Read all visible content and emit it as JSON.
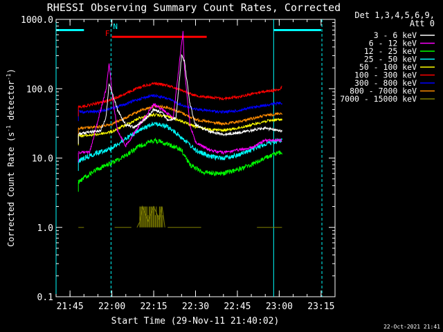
{
  "chart_data": {
    "type": "line",
    "title": "RHESSI Observing Summary Count Rates, Corrected",
    "xlabel": "Start Time (29-Nov-11 21:40:02)",
    "ylabel_main": "Corrected Count Rate (s",
    "ylabel_sup": "-1",
    "ylabel_mid": " detector",
    "ylabel_end": ")",
    "y_scale": "log",
    "ylim": [
      0.1,
      1000
    ],
    "xlim": [
      "21:40",
      "23:20"
    ],
    "y_ticks": [
      {
        "value": 0.1,
        "label": "0.1"
      },
      {
        "value": 1,
        "label": "1.0"
      },
      {
        "value": 10,
        "label": "10.0"
      },
      {
        "value": 100,
        "label": "100.0"
      },
      {
        "value": 1000,
        "label": "1000.0"
      }
    ],
    "x_ticks": [
      {
        "value": "21:45",
        "label": "21:45"
      },
      {
        "value": "22:00",
        "label": "22:00"
      },
      {
        "value": "22:15",
        "label": "22:15"
      },
      {
        "value": "22:30",
        "label": "22:30"
      },
      {
        "value": "22:45",
        "label": "22:45"
      },
      {
        "value": "23:00",
        "label": "23:00"
      },
      {
        "value": "23:15",
        "label": "23:15"
      }
    ],
    "legend_placement": "right",
    "legend_header": [
      "Det 1,3,4,5,6,9,",
      "Att 0"
    ],
    "series": [
      {
        "name": "3 - 6 keV",
        "color": "#000000",
        "display_color": "#ffffff",
        "points": [
          [
            "21:48",
            22
          ],
          [
            "21:50",
            23
          ],
          [
            "21:56",
            25
          ],
          [
            "21:58",
            40
          ],
          [
            "21:59",
            120
          ],
          [
            "22:00",
            90
          ],
          [
            "22:02",
            50
          ],
          [
            "22:05",
            30
          ],
          [
            "22:08",
            28
          ],
          [
            "22:12",
            36
          ],
          [
            "22:15",
            50
          ],
          [
            "22:18",
            45
          ],
          [
            "22:20",
            35
          ],
          [
            "22:23",
            38
          ],
          [
            "22:25",
            300
          ],
          [
            "22:26",
            250
          ],
          [
            "22:28",
            60
          ],
          [
            "22:30",
            30
          ],
          [
            "22:35",
            24
          ],
          [
            "22:40",
            22
          ],
          [
            "22:45",
            23
          ],
          [
            "22:50",
            25
          ],
          [
            "22:55",
            27
          ],
          [
            "23:00",
            25
          ],
          [
            "23:01",
            24
          ]
        ]
      },
      {
        "name": "6 - 12 keV",
        "color": "#ff00ff",
        "points": [
          [
            "21:48",
            12
          ],
          [
            "21:52",
            12
          ],
          [
            "21:58",
            100
          ],
          [
            "21:59",
            240
          ],
          [
            "22:00",
            90
          ],
          [
            "22:02",
            25
          ],
          [
            "22:05",
            15
          ],
          [
            "22:10",
            30
          ],
          [
            "22:15",
            60
          ],
          [
            "22:18",
            50
          ],
          [
            "22:22",
            38
          ],
          [
            "22:25",
            450
          ],
          [
            "22:25.5",
            650
          ],
          [
            "22:26",
            200
          ],
          [
            "22:28",
            30
          ],
          [
            "22:30",
            17
          ],
          [
            "22:35",
            13
          ],
          [
            "22:40",
            12
          ],
          [
            "22:50",
            14
          ],
          [
            "22:55",
            18
          ],
          [
            "23:00",
            18
          ],
          [
            "23:01",
            18
          ]
        ]
      },
      {
        "name": "12 - 25 keV",
        "color": "#00ff00",
        "points": [
          [
            "21:48",
            4.5
          ],
          [
            "21:50",
            5.2
          ],
          [
            "21:55",
            7
          ],
          [
            "22:00",
            8.5
          ],
          [
            "22:05",
            11
          ],
          [
            "22:10",
            15
          ],
          [
            "22:15",
            18
          ],
          [
            "22:20",
            16
          ],
          [
            "22:25",
            13
          ],
          [
            "22:28",
            8
          ],
          [
            "22:33",
            6.2
          ],
          [
            "22:40",
            6
          ],
          [
            "22:45",
            6.8
          ],
          [
            "22:50",
            8
          ],
          [
            "22:55",
            10
          ],
          [
            "23:00",
            12
          ],
          [
            "23:01",
            12
          ]
        ]
      },
      {
        "name": "25 - 50 keV",
        "color": "#00ffff",
        "points": [
          [
            "21:48",
            9
          ],
          [
            "21:50",
            10
          ],
          [
            "21:55",
            12
          ],
          [
            "22:00",
            14
          ],
          [
            "22:05",
            19
          ],
          [
            "22:10",
            25
          ],
          [
            "22:15",
            32
          ],
          [
            "22:20",
            28
          ],
          [
            "22:25",
            20
          ],
          [
            "22:30",
            13
          ],
          [
            "22:35",
            10.5
          ],
          [
            "22:40",
            10
          ],
          [
            "22:45",
            11
          ],
          [
            "22:50",
            13
          ],
          [
            "22:55",
            16
          ],
          [
            "23:00",
            18
          ],
          [
            "23:01",
            18
          ]
        ]
      },
      {
        "name": "50 - 100 keV",
        "color": "#ffff00",
        "points": [
          [
            "21:48",
            21
          ],
          [
            "21:50",
            21
          ],
          [
            "21:55",
            22
          ],
          [
            "22:00",
            24
          ],
          [
            "22:05",
            30
          ],
          [
            "22:10",
            38
          ],
          [
            "22:15",
            42
          ],
          [
            "22:20",
            40
          ],
          [
            "22:25",
            34
          ],
          [
            "22:30",
            28
          ],
          [
            "22:35",
            26
          ],
          [
            "22:40",
            25
          ],
          [
            "22:45",
            27
          ],
          [
            "22:50",
            30
          ],
          [
            "22:55",
            34
          ],
          [
            "23:00",
            36
          ],
          [
            "23:01",
            36
          ]
        ]
      },
      {
        "name": "100 - 300 keV",
        "color": "#ff0000",
        "points": [
          [
            "21:48",
            55
          ],
          [
            "21:50",
            56
          ],
          [
            "21:55",
            62
          ],
          [
            "22:00",
            70
          ],
          [
            "22:05",
            85
          ],
          [
            "22:10",
            105
          ],
          [
            "22:15",
            120
          ],
          [
            "22:20",
            112
          ],
          [
            "22:25",
            95
          ],
          [
            "22:30",
            80
          ],
          [
            "22:35",
            75
          ],
          [
            "22:40",
            72
          ],
          [
            "22:45",
            76
          ],
          [
            "22:50",
            84
          ],
          [
            "22:55",
            92
          ],
          [
            "23:00",
            96
          ],
          [
            "23:01",
            105
          ]
        ]
      },
      {
        "name": "300 - 800 keV",
        "color": "#0000ff",
        "points": [
          [
            "21:48",
            47
          ],
          [
            "21:50",
            46
          ],
          [
            "21:55",
            47
          ],
          [
            "22:00",
            52
          ],
          [
            "22:05",
            60
          ],
          [
            "22:10",
            72
          ],
          [
            "22:15",
            80
          ],
          [
            "22:20",
            72
          ],
          [
            "22:25",
            58
          ],
          [
            "22:30",
            51
          ],
          [
            "22:35",
            48
          ],
          [
            "22:40",
            46
          ],
          [
            "22:45",
            48
          ],
          [
            "22:50",
            53
          ],
          [
            "22:55",
            58
          ],
          [
            "23:00",
            62
          ],
          [
            "23:01",
            62
          ]
        ]
      },
      {
        "name": "800 - 7000 keV",
        "color": "#ff8c00",
        "points": [
          [
            "21:48",
            27
          ],
          [
            "21:50",
            27
          ],
          [
            "21:55",
            28
          ],
          [
            "22:00",
            31
          ],
          [
            "22:05",
            38
          ],
          [
            "22:10",
            48
          ],
          [
            "22:15",
            56
          ],
          [
            "22:20",
            54
          ],
          [
            "22:25",
            45
          ],
          [
            "22:30",
            36
          ],
          [
            "22:35",
            33
          ],
          [
            "22:40",
            31
          ],
          [
            "22:45",
            33
          ],
          [
            "22:50",
            37
          ],
          [
            "22:55",
            41
          ],
          [
            "23:00",
            44
          ],
          [
            "23:01",
            44
          ]
        ]
      },
      {
        "name": "7000 - 15000 keV",
        "color": "#808000",
        "segments": [
          [
            [
              "21:48",
              1.0
            ],
            [
              "21:50",
              1.0
            ]
          ],
          [
            [
              "22:01",
              1.0
            ],
            [
              "22:07",
              1.0
            ]
          ],
          [
            [
              "22:09",
              1.0
            ],
            [
              "22:10",
              1.2
            ],
            [
              "22:11",
              2.0
            ],
            [
              "22:13",
              1.2
            ],
            [
              "22:15",
              2.0
            ],
            [
              "22:17",
              1.3
            ],
            [
              "22:18",
              2.0
            ],
            [
              "22:19",
              1.0
            ]
          ],
          [
            [
              "22:20",
              1.0
            ],
            [
              "22:32",
              1.0
            ]
          ],
          [
            [
              "22:52",
              1.0
            ],
            [
              "22:57",
              1.0
            ]
          ],
          [
            [
              "22:57",
              1.0
            ],
            [
              "23:01",
              1.0
            ]
          ]
        ]
      }
    ],
    "annotations": [
      {
        "label": "N",
        "color": "#00ffff",
        "x": "21:59.7"
      },
      {
        "label": "F",
        "color": "#ff0000",
        "x": "22:00.2"
      }
    ],
    "attenuator_bars": [
      {
        "color": "#00ffff",
        "start": "21:40",
        "end": "21:50",
        "y": 700
      },
      {
        "color": "#00ffff",
        "start": "22:58",
        "end": "23:15",
        "y": 700
      },
      {
        "color": "#ff0000",
        "start": "22:00",
        "end": "22:34",
        "y": 560
      }
    ],
    "vertical_lines": [
      {
        "x": "21:40",
        "style": "solid",
        "color": "#00ffff"
      },
      {
        "x": "21:59.7",
        "style": "dashed",
        "color": "#00ffff"
      },
      {
        "x": "22:58",
        "style": "solid",
        "color": "#00ffff"
      },
      {
        "x": "23:15.3",
        "style": "dashed",
        "color": "#00ffff"
      }
    ],
    "footer_date": "22-Oct-2021 21:41"
  }
}
